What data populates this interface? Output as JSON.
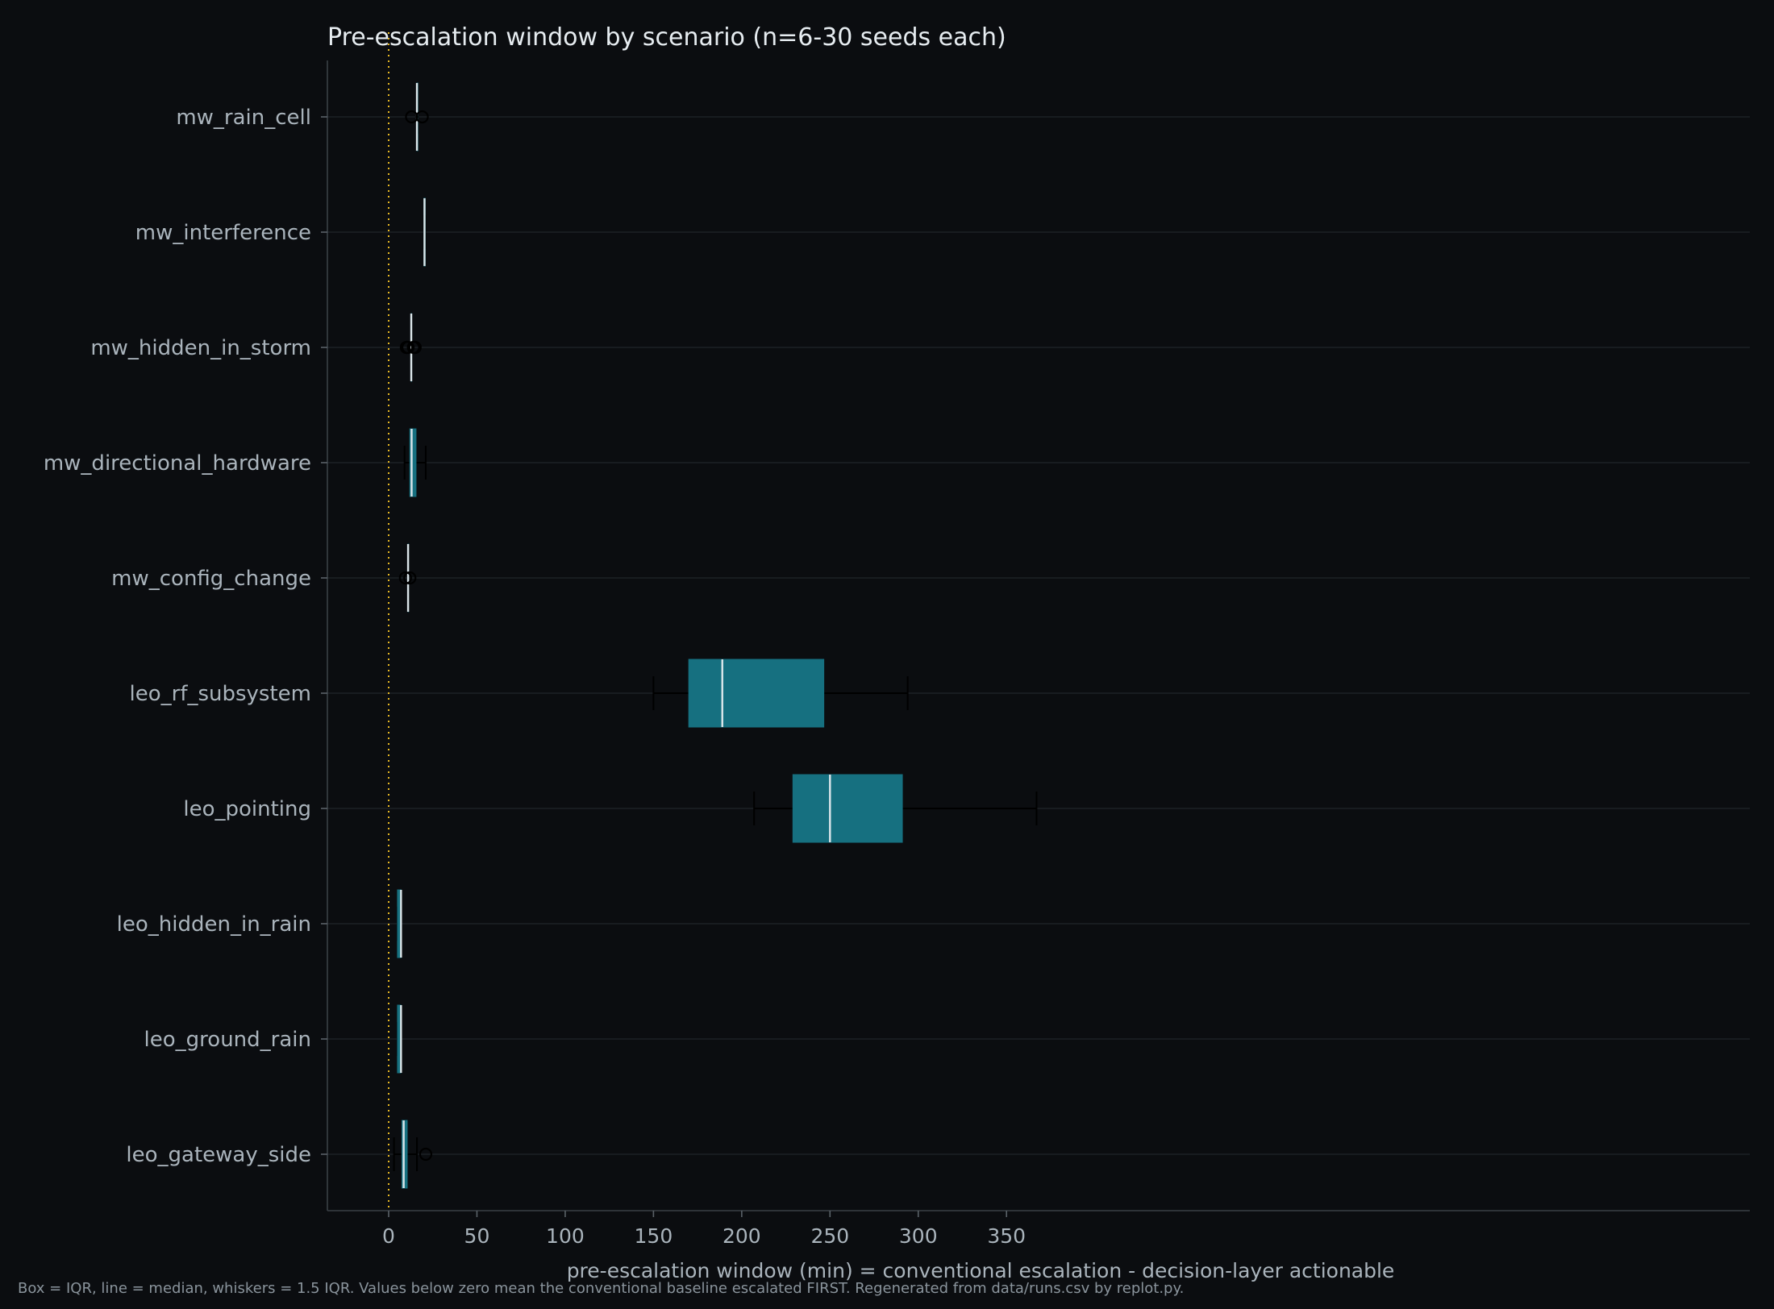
{
  "chart_data": {
    "type": "boxplot",
    "orientation": "horizontal",
    "title": "Pre-escalation window by scenario (n=6-30 seeds each)",
    "xlabel": "pre-escalation window (min)  =  conventional escalation - decision-layer actionable",
    "ylabel": "",
    "xlim": [
      -17,
      385
    ],
    "xticks": [
      0,
      50,
      100,
      150,
      200,
      250,
      300,
      350
    ],
    "reference_line": {
      "x": 0,
      "style": "dotted"
    },
    "grid": "horizontal",
    "categories": [
      "mw_rain_cell",
      "mw_interference",
      "mw_hidden_in_storm",
      "mw_directional_hardware",
      "mw_config_change",
      "leo_rf_subsystem",
      "leo_pointing",
      "leo_hidden_in_rain",
      "leo_ground_rain",
      "leo_gateway_side"
    ],
    "boxes": [
      {
        "category": "mw_rain_cell",
        "whisker_low": 16,
        "q1": 16,
        "median": 16,
        "q3": 16.5,
        "whisker_high": 16.5,
        "outliers": [
          13,
          19
        ]
      },
      {
        "category": "mw_interference",
        "whisker_low": 20,
        "q1": 20,
        "median": 20.3,
        "q3": 20.7,
        "whisker_high": 20.7,
        "outliers": []
      },
      {
        "category": "mw_hidden_in_storm",
        "whisker_low": 12.8,
        "q1": 12.8,
        "median": 12.8,
        "q3": 12.8,
        "whisker_high": 12.8,
        "outliers": [
          10,
          10.5,
          11,
          14,
          14.5,
          15
        ]
      },
      {
        "category": "mw_directional_hardware",
        "whisker_low": 9,
        "q1": 12,
        "median": 13,
        "q3": 15.5,
        "whisker_high": 21,
        "outliers": []
      },
      {
        "category": "mw_config_change",
        "whisker_low": 11,
        "q1": 11,
        "median": 11,
        "q3": 11,
        "whisker_high": 11,
        "outliers": [
          9.5,
          12
        ]
      },
      {
        "category": "leo_rf_subsystem",
        "whisker_low": 150,
        "q1": 170,
        "median": 189,
        "q3": 246.5,
        "whisker_high": 294,
        "outliers": []
      },
      {
        "category": "leo_pointing",
        "whisker_low": 207,
        "q1": 229,
        "median": 250,
        "q3": 291,
        "whisker_high": 367,
        "outliers": []
      },
      {
        "category": "leo_hidden_in_rain",
        "whisker_low": 5,
        "q1": 5,
        "median": 7,
        "q3": 7,
        "whisker_high": 7,
        "outliers": []
      },
      {
        "category": "leo_ground_rain",
        "whisker_low": 5,
        "q1": 5,
        "median": 7,
        "q3": 7,
        "whisker_high": 7,
        "outliers": []
      },
      {
        "category": "leo_gateway_side",
        "whisker_low": 3,
        "q1": 7.5,
        "median": 8.5,
        "q3": 10.5,
        "whisker_high": 16,
        "outliers": [
          21
        ]
      }
    ],
    "colors": {
      "background": "#0b0d10",
      "box_fill": "#167080",
      "median_line": "#dce6ea",
      "whisker": "#000000",
      "reference_line": "#e8b923",
      "grid": "#1d2226",
      "text": "#aab4bc",
      "title": "#e6ecf0"
    }
  },
  "footnote": "Box = IQR, line = median, whiskers = 1.5 IQR. Values below zero mean the conventional baseline escalated FIRST. Regenerated from data/runs.csv by replot.py."
}
